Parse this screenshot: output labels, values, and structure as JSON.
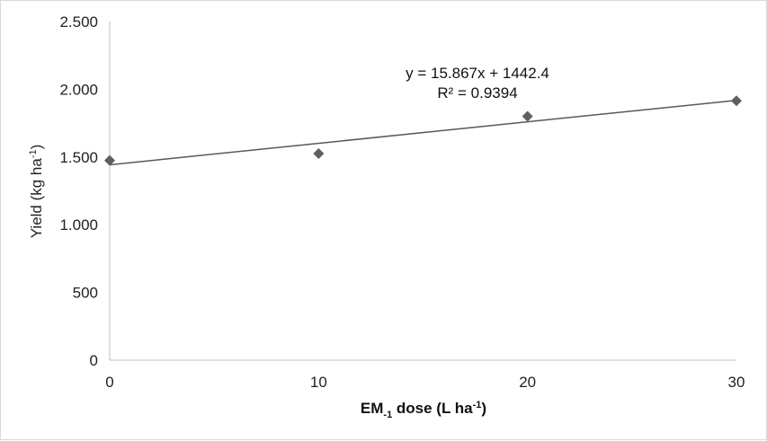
{
  "chart_data": {
    "type": "scatter",
    "x": [
      0,
      10,
      20,
      30
    ],
    "y": [
      1475,
      1525,
      1800,
      1915
    ],
    "xlim": [
      0,
      30
    ],
    "ylim": [
      0,
      2500
    ],
    "x_ticks": [
      0,
      10,
      20,
      30
    ],
    "x_tick_labels": [
      "0",
      "10",
      "20",
      "30"
    ],
    "y_ticks": [
      0,
      500,
      1000,
      1500,
      2000,
      2500
    ],
    "y_tick_labels": [
      "0",
      "500",
      "1.000",
      "1.500",
      "2.000",
      "2.500"
    ],
    "ylabel": {
      "main": "Yield (kg ha",
      "sup": "-1",
      "end": ")"
    },
    "xlabel": {
      "main": "EM",
      "sub": "-1",
      "rest": " dose (L ha",
      "sup": "-1",
      "end": ")"
    },
    "trendline": {
      "slope": 15.867,
      "intercept": 1442.4,
      "equation": "y = 15.867x + 1442.4",
      "r2_label": "R² = 0.9394"
    },
    "grid": false,
    "legend": "none",
    "colors": {
      "marker": "#5f5f5f",
      "trendline": "#595959",
      "axis": "#bfbfbf"
    }
  }
}
